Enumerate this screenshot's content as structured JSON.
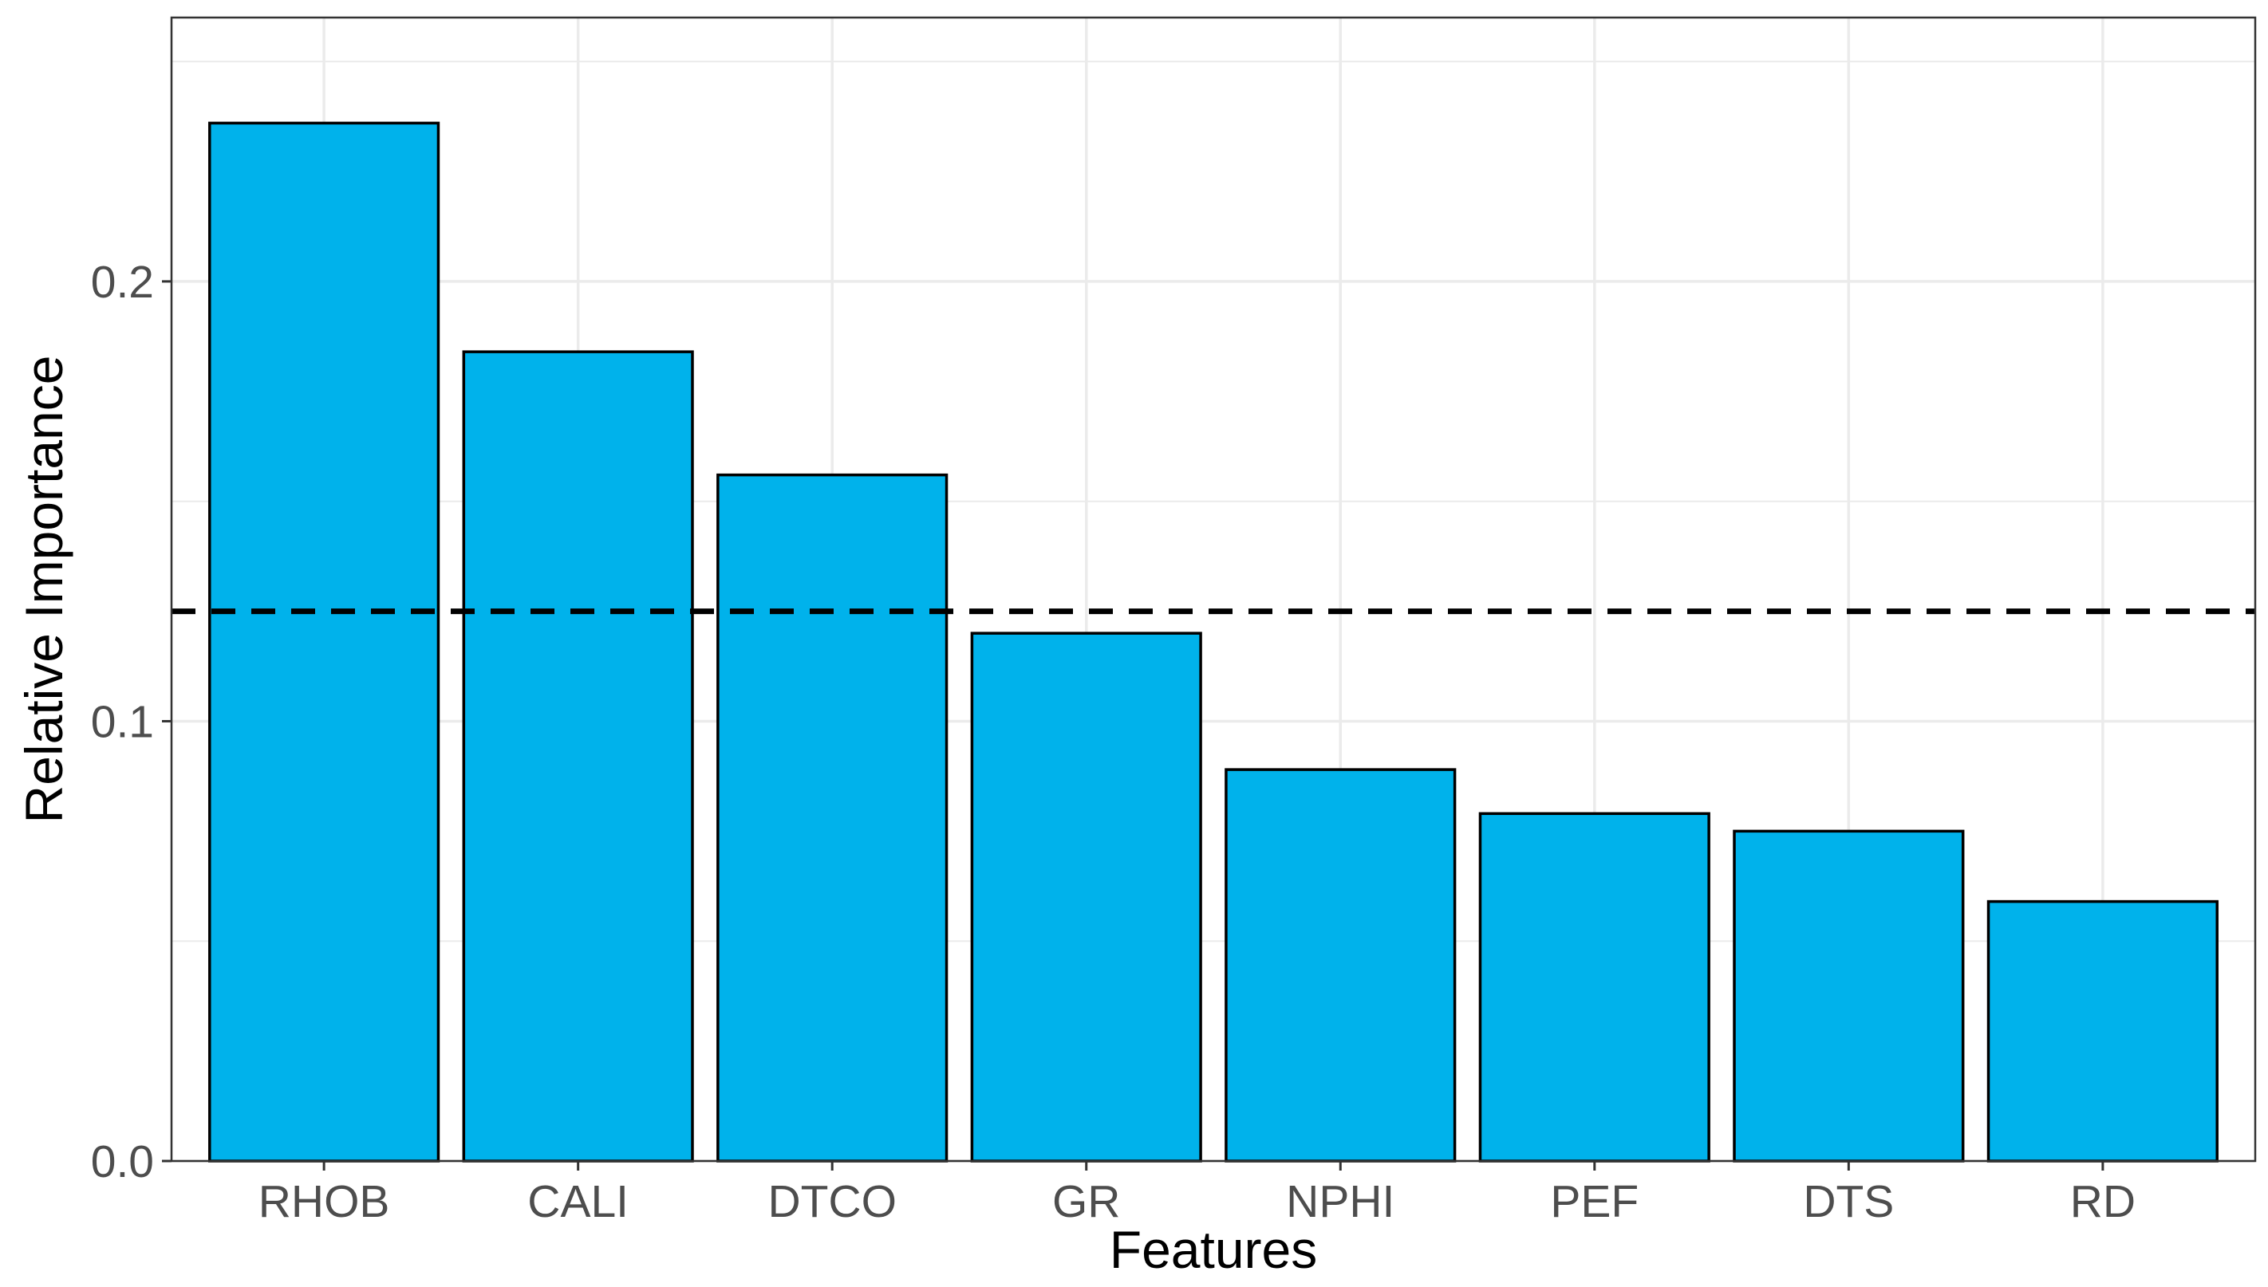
{
  "chart_data": {
    "type": "bar",
    "title": "",
    "xlabel": "Features",
    "ylabel": "Relative Importance",
    "categories": [
      "RHOB",
      "CALI",
      "DTCO",
      "GR",
      "NPHI",
      "PEF",
      "DTS",
      "RD"
    ],
    "values": [
      0.236,
      0.184,
      0.156,
      0.12,
      0.089,
      0.079,
      0.075,
      0.059
    ],
    "reference_line": {
      "y": 0.125,
      "style": "dashed"
    },
    "ylim": [
      0.0,
      0.26
    ],
    "y_ticks": [
      {
        "value": 0.0,
        "label": "0.0"
      },
      {
        "value": 0.1,
        "label": "0.1"
      },
      {
        "value": 0.2,
        "label": "0.2"
      }
    ],
    "y_minor_grid": [
      0.05,
      0.15,
      0.25
    ],
    "grid": true,
    "colors": {
      "bar_fill": "#00B2EB",
      "bar_stroke": "#000000",
      "grid": "#ebebeb",
      "reference_line": "#000000"
    }
  }
}
